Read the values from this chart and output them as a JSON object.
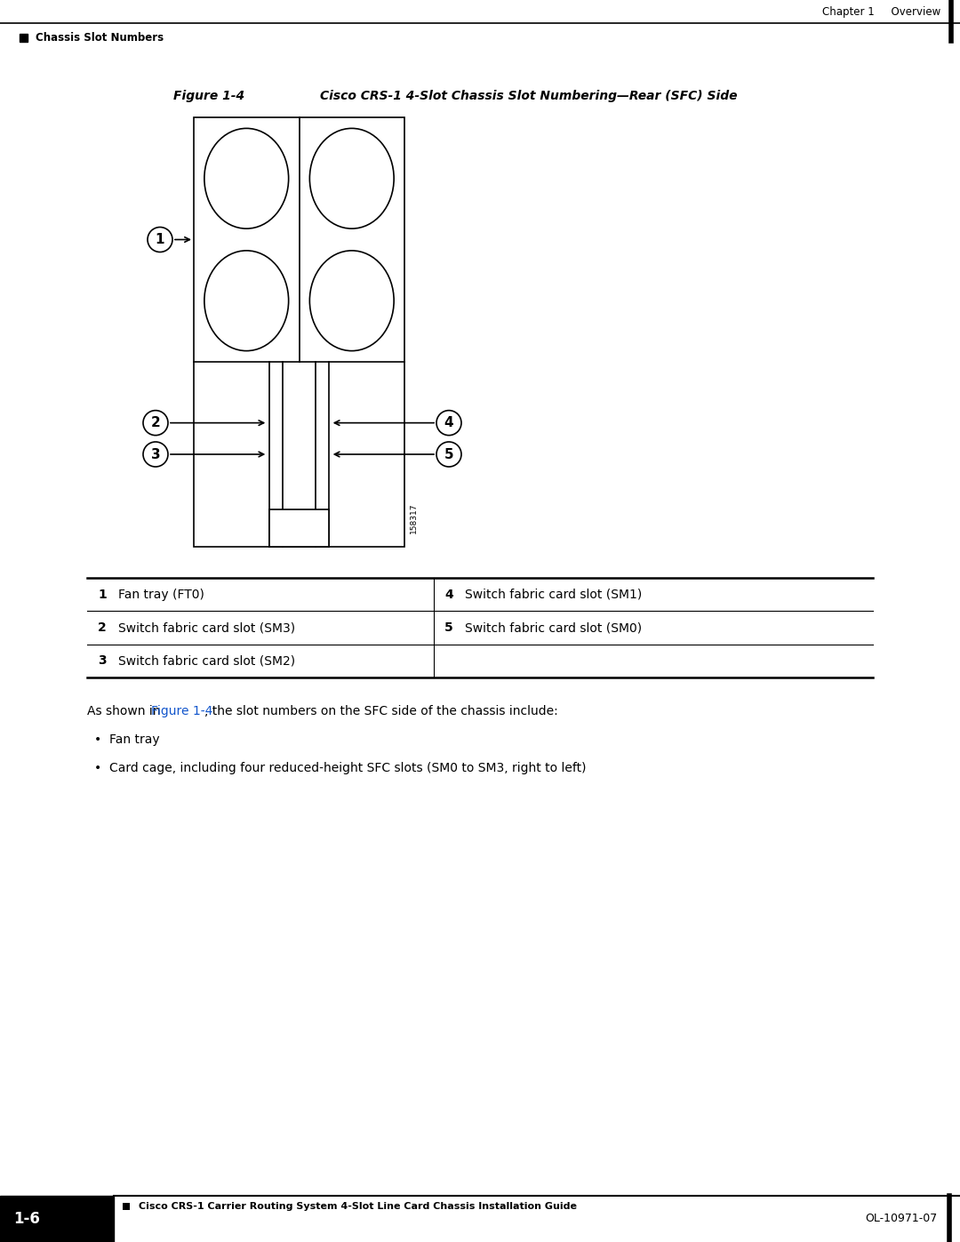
{
  "page_title_right": "Chapter 1     Overview",
  "page_header_left": "Chassis Slot Numbers",
  "figure_label": "Figure 1-4",
  "figure_title": "Cisco CRS-1 4-Slot Chassis Slot Numbering—Rear (SFC) Side",
  "figure_id": "158317",
  "bg_color": "#ffffff",
  "table_rows": [
    {
      "num": "1",
      "label": "Fan tray (FT0)",
      "num2": "4",
      "label2": "Switch fabric card slot (SM1)"
    },
    {
      "num": "2",
      "label": "Switch fabric card slot (SM3)",
      "num2": "5",
      "label2": "Switch fabric card slot (SM0)"
    },
    {
      "num": "3",
      "label": "Switch fabric card slot (SM2)",
      "num2": "",
      "label2": ""
    }
  ],
  "body_pre": "As shown in ",
  "body_link": "Figure 1-4",
  "body_post": ", the slot numbers on the SFC side of the chassis include:",
  "bullet1": "Fan tray",
  "bullet2": "Card cage, including four reduced-height SFC slots (SM0 to SM3, right to left)",
  "footer_left": "Cisco CRS-1 Carrier Routing System 4-Slot Line Card Chassis Installation Guide",
  "footer_right": "OL-10971-07",
  "page_num": "1-6",
  "link_color": "#1155cc"
}
